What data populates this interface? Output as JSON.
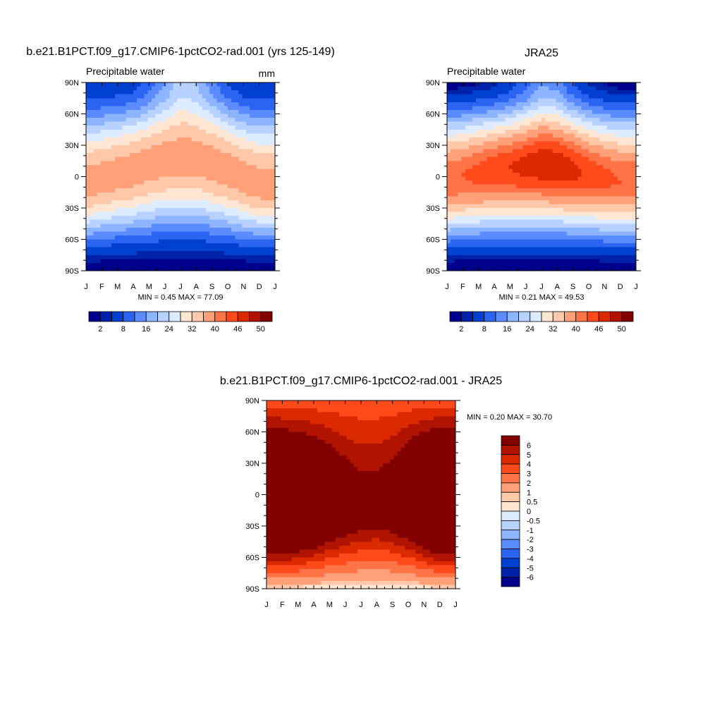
{
  "chart_data": [
    {
      "type": "heatmap",
      "title": "b.e21.B1PCT.f09_g17.CMIP6-1pctCO2-rad.001 (yrs 125-149)",
      "subtitle_left": "Precipitable water",
      "subtitle_right": "mm",
      "stats": "MIN =   0.45 MAX =  77.09",
      "x_tick_labels": [
        "J",
        "F",
        "M",
        "A",
        "M",
        "J",
        "J",
        "A",
        "S",
        "O",
        "N",
        "D",
        "J"
      ],
      "y_tick_labels": [
        "90N",
        "60N",
        "30N",
        "0",
        "30S",
        "60S",
        "90S"
      ],
      "colorbar": {
        "colors": [
          "#00008c",
          "#0022a8",
          "#0040d0",
          "#2a64f0",
          "#5a8cff",
          "#8cb4ff",
          "#b8d2ff",
          "#dcebff",
          "#ffe6d2",
          "#ffc8a8",
          "#ffa078",
          "#ff7446",
          "#ff4a1c",
          "#dc2a00",
          "#b01400",
          "#820000"
        ],
        "labels": [
          "2",
          "8",
          "16",
          "24",
          "32",
          "40",
          "46",
          "50"
        ]
      },
      "field": {
        "zero_lat": [
          -8,
          -2,
          2,
          6,
          12,
          16,
          18,
          18,
          12,
          6,
          -2,
          -8,
          -8
        ],
        "peak": [
          38,
          38,
          38,
          38,
          38,
          38,
          38,
          38,
          38,
          38,
          38,
          38,
          38
        ],
        "north_pole": [
          4,
          4,
          5,
          6,
          10,
          16,
          22,
          20,
          14,
          8,
          5,
          4,
          4
        ],
        "south_pole": [
          0.5,
          0.5,
          0.5,
          0.5,
          0.5,
          0.5,
          0.5,
          0.5,
          0.5,
          0.5,
          0.5,
          0.5,
          0.5
        ]
      }
    },
    {
      "type": "heatmap",
      "title": "JRA25",
      "subtitle_left": "Precipitable water",
      "stats": "MIN =   0.21 MAX =  49.53",
      "x_tick_labels": [
        "J",
        "F",
        "M",
        "A",
        "M",
        "J",
        "J",
        "A",
        "S",
        "O",
        "N",
        "D",
        "J"
      ],
      "y_tick_labels": [
        "90N",
        "60N",
        "30N",
        "0",
        "30S",
        "60S",
        "90S"
      ],
      "colorbar": {
        "colors": [
          "#00008c",
          "#0022a8",
          "#0040d0",
          "#2a64f0",
          "#5a8cff",
          "#8cb4ff",
          "#b8d2ff",
          "#dcebff",
          "#ffe6d2",
          "#ffc8a8",
          "#ffa078",
          "#ff7446",
          "#ff4a1c",
          "#dc2a00",
          "#b01400",
          "#820000"
        ],
        "labels": [
          "2",
          "8",
          "16",
          "24",
          "32",
          "40",
          "46",
          "50"
        ]
      },
      "field": {
        "zero_lat": [
          -4,
          0,
          3,
          6,
          8,
          10,
          12,
          10,
          6,
          2,
          -2,
          -4,
          -4
        ],
        "peak": [
          43,
          43,
          44,
          45,
          46,
          47,
          48,
          48,
          47,
          45,
          44,
          43,
          43
        ],
        "north_pole": [
          1,
          1,
          2,
          3,
          6,
          10,
          16,
          14,
          8,
          4,
          2,
          1,
          1
        ],
        "south_pole": [
          0.3,
          0.3,
          0.3,
          0.3,
          0.3,
          0.3,
          0.3,
          0.3,
          0.3,
          0.3,
          0.3,
          0.3,
          0.3
        ]
      }
    },
    {
      "type": "heatmap",
      "title": "b.e21.B1PCT.f09_g17.CMIP6-1pctCO2-rad.001 - JRA25",
      "stats": "MIN =   0.20 MAX =  30.70",
      "x_tick_labels": [
        "J",
        "F",
        "M",
        "A",
        "M",
        "J",
        "J",
        "A",
        "S",
        "O",
        "N",
        "D",
        "J"
      ],
      "y_tick_labels": [
        "90N",
        "60N",
        "30N",
        "0",
        "30S",
        "60S",
        "90S"
      ],
      "colorbar": {
        "colors": [
          "#00008c",
          "#0022a8",
          "#0040d0",
          "#2a64f0",
          "#5a8cff",
          "#8cb4ff",
          "#b8d2ff",
          "#dcebff",
          "#ffe6d2",
          "#ffc8a8",
          "#ffa078",
          "#ff7446",
          "#ff4a1c",
          "#dc2a00",
          "#b01400",
          "#820000"
        ],
        "labels": [
          "6",
          "5",
          "4",
          "3",
          "2",
          "1",
          "0.5",
          "0",
          "-0.5",
          "-1",
          "-2",
          "-3",
          "-4",
          "-5",
          "-6"
        ]
      },
      "field": {
        "north_high_lat": [
          60,
          58,
          55,
          50,
          40,
          25,
          10,
          10,
          25,
          45,
          55,
          60,
          60
        ],
        "south_high_lat": [
          -55,
          -55,
          -52,
          -48,
          -42,
          -35,
          -30,
          -28,
          -32,
          -40,
          -48,
          -55,
          -55
        ]
      }
    }
  ]
}
